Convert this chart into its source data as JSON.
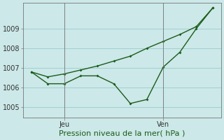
{
  "background_color": "#cce8e8",
  "grid_color": "#99cccc",
  "line_color": "#1a5c1a",
  "jagged_x": [
    0,
    1,
    2,
    3,
    4,
    5,
    6,
    7,
    8,
    9,
    10,
    11
  ],
  "jagged_y": [
    1006.8,
    1006.2,
    1006.2,
    1006.6,
    1006.6,
    1006.2,
    1005.2,
    1005.4,
    1007.05,
    1007.8,
    1009.0,
    1010.05
  ],
  "smooth_x": [
    0,
    1,
    2,
    3,
    4,
    5,
    6,
    7,
    8,
    9,
    10,
    11
  ],
  "smooth_y": [
    1006.8,
    1006.55,
    1006.7,
    1006.9,
    1007.1,
    1007.35,
    1007.6,
    1008.0,
    1008.35,
    1008.7,
    1009.1,
    1010.05
  ],
  "jeu_x": 2,
  "ven_x": 8,
  "xlabel": "Pression niveau de la mer( hPa )",
  "ylim": [
    1004.5,
    1010.3
  ],
  "xlim": [
    -0.5,
    11.5
  ],
  "yticks": [
    1005,
    1006,
    1007,
    1008,
    1009
  ],
  "xlabel_fontsize": 8,
  "tick_fontsize": 7
}
